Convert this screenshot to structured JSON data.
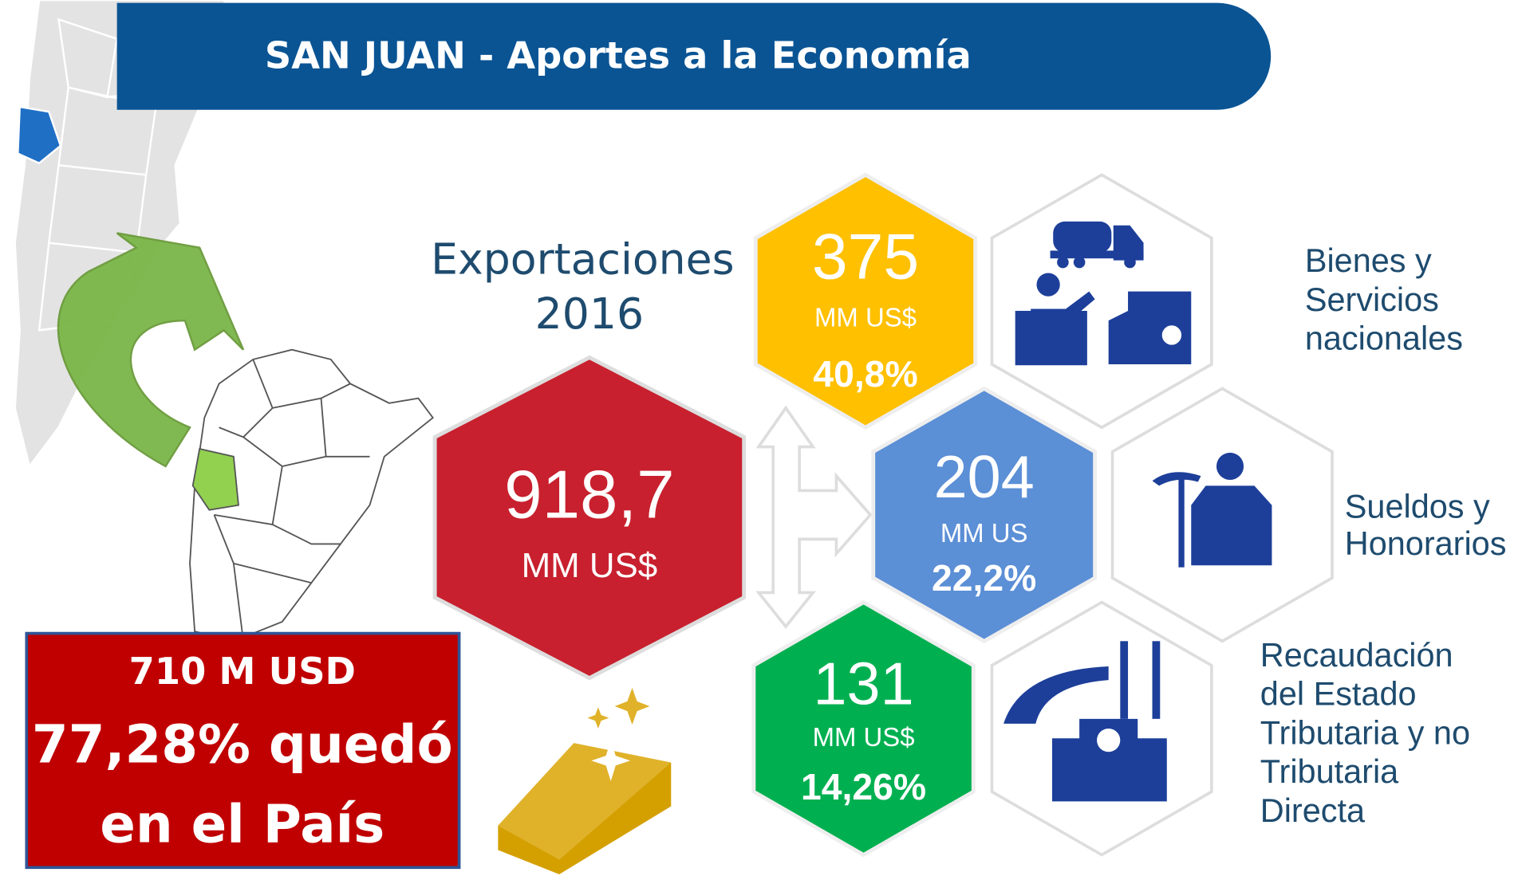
{
  "header": {
    "title": "SAN JUAN - Aportes a la Economía"
  },
  "exports": {
    "label": [
      "Exportaciones",
      "2016"
    ],
    "value": "918,7",
    "unit": "MM US$"
  },
  "hexagons": [
    {
      "value": "375",
      "unit": "MM US$",
      "share": "40,8%",
      "label": [
        "Bienes y",
        "Servicios",
        "nacionales"
      ]
    },
    {
      "value": "204",
      "unit": "MM US",
      "share": "22,2%",
      "label": [
        "Sueldos y",
        "Honorarios"
      ]
    },
    {
      "value": "131",
      "unit": "MM US$",
      "share": "14,26%",
      "label": [
        "Recaudación",
        "del Estado",
        "Tributaria y no",
        "Tributaria",
        "Directa"
      ]
    }
  ],
  "callout": [
    "710 M USD",
    "77,28% quedó",
    "en el País"
  ]
}
